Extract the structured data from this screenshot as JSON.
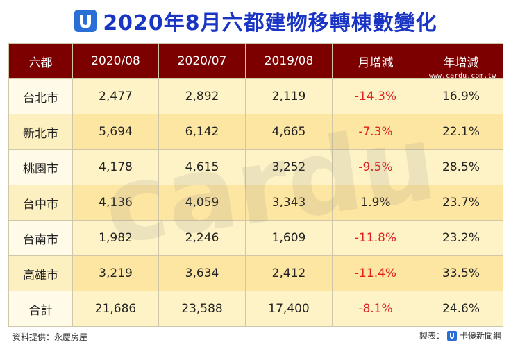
{
  "title": "2020年8月六都建物移轉棟數變化",
  "watermark": "cardu",
  "watermark_url": "www.cardu.com.tw",
  "table": {
    "header": [
      "六都",
      "2020/08",
      "2020/07",
      "2019/08",
      "月增減",
      "年增減"
    ],
    "rows": [
      [
        "台北市",
        "2,477",
        "2,892",
        "2,119",
        "-14.3%",
        "16.9%"
      ],
      [
        "新北市",
        "5,694",
        "6,142",
        "4,665",
        "-7.3%",
        "22.1%"
      ],
      [
        "桃園市",
        "4,178",
        "4,615",
        "3,252",
        "-9.5%",
        "28.5%"
      ],
      [
        "台中市",
        "4,136",
        "4,059",
        "3,343",
        "1.9%",
        "23.7%"
      ],
      [
        "台南市",
        "1,982",
        "2,246",
        "1,609",
        "-11.8%",
        "23.2%"
      ],
      [
        "高雄市",
        "3,219",
        "3,634",
        "2,412",
        "-11.4%",
        "33.5%"
      ],
      [
        "合計",
        "21,686",
        "23,588",
        "17,400",
        "-8.1%",
        "24.6%"
      ]
    ]
  },
  "footer": {
    "source": "資料提供：永慶房屋",
    "maker": "製表：",
    "brand": "卡優新聞網"
  }
}
